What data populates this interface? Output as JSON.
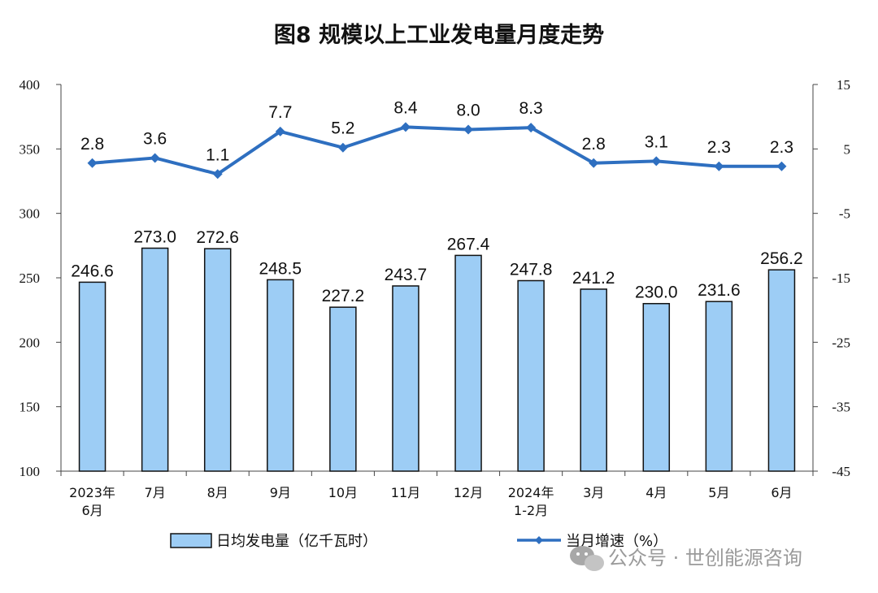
{
  "chart_data": {
    "type": "bar",
    "title": "图8  规模以上工业发电量月度走势",
    "categories": [
      [
        "2023年",
        "6月"
      ],
      [
        "7月"
      ],
      [
        "8月"
      ],
      [
        "9月"
      ],
      [
        "10月"
      ],
      [
        "11月"
      ],
      [
        "12月"
      ],
      [
        "2024年",
        "1-2月"
      ],
      [
        "3月"
      ],
      [
        "4月"
      ],
      [
        "5月"
      ],
      [
        "6月"
      ]
    ],
    "bar_series": {
      "name": "日均发电量（亿千瓦时）",
      "values": [
        246.6,
        273.0,
        272.6,
        248.5,
        227.2,
        243.7,
        267.4,
        247.8,
        241.2,
        230.0,
        231.6,
        256.2
      ],
      "labels": [
        "246.6",
        "273.0",
        "272.6",
        "248.5",
        "227.2",
        "243.7",
        "267.4",
        "247.8",
        "241.2",
        "230.0",
        "231.6",
        "256.2"
      ],
      "color": "#9dcdf5",
      "axis": "left"
    },
    "line_series": {
      "name": "当月增速（%）",
      "values": [
        2.8,
        3.6,
        1.1,
        7.7,
        5.2,
        8.4,
        8.0,
        8.3,
        2.8,
        3.1,
        2.3,
        2.3
      ],
      "labels": [
        "2.8",
        "3.6",
        "1.1",
        "7.7",
        "5.2",
        "8.4",
        "8.0",
        "8.3",
        "2.8",
        "3.1",
        "2.3",
        "2.3"
      ],
      "color": "#2e6fc0",
      "axis": "right"
    },
    "left_axis": {
      "ylim": [
        100,
        400
      ],
      "ticks": [
        "100",
        "150",
        "200",
        "250",
        "300",
        "350",
        "400"
      ]
    },
    "right_axis": {
      "ylim": [
        -45,
        15
      ],
      "ticks": [
        "-45",
        "-35",
        "-25",
        "-15",
        "-5",
        "5",
        "15"
      ]
    },
    "grid": false,
    "legend_position": "bottom"
  },
  "watermark": {
    "text": "公众号 · 世创能源咨询",
    "icon": "wechat-icon"
  }
}
